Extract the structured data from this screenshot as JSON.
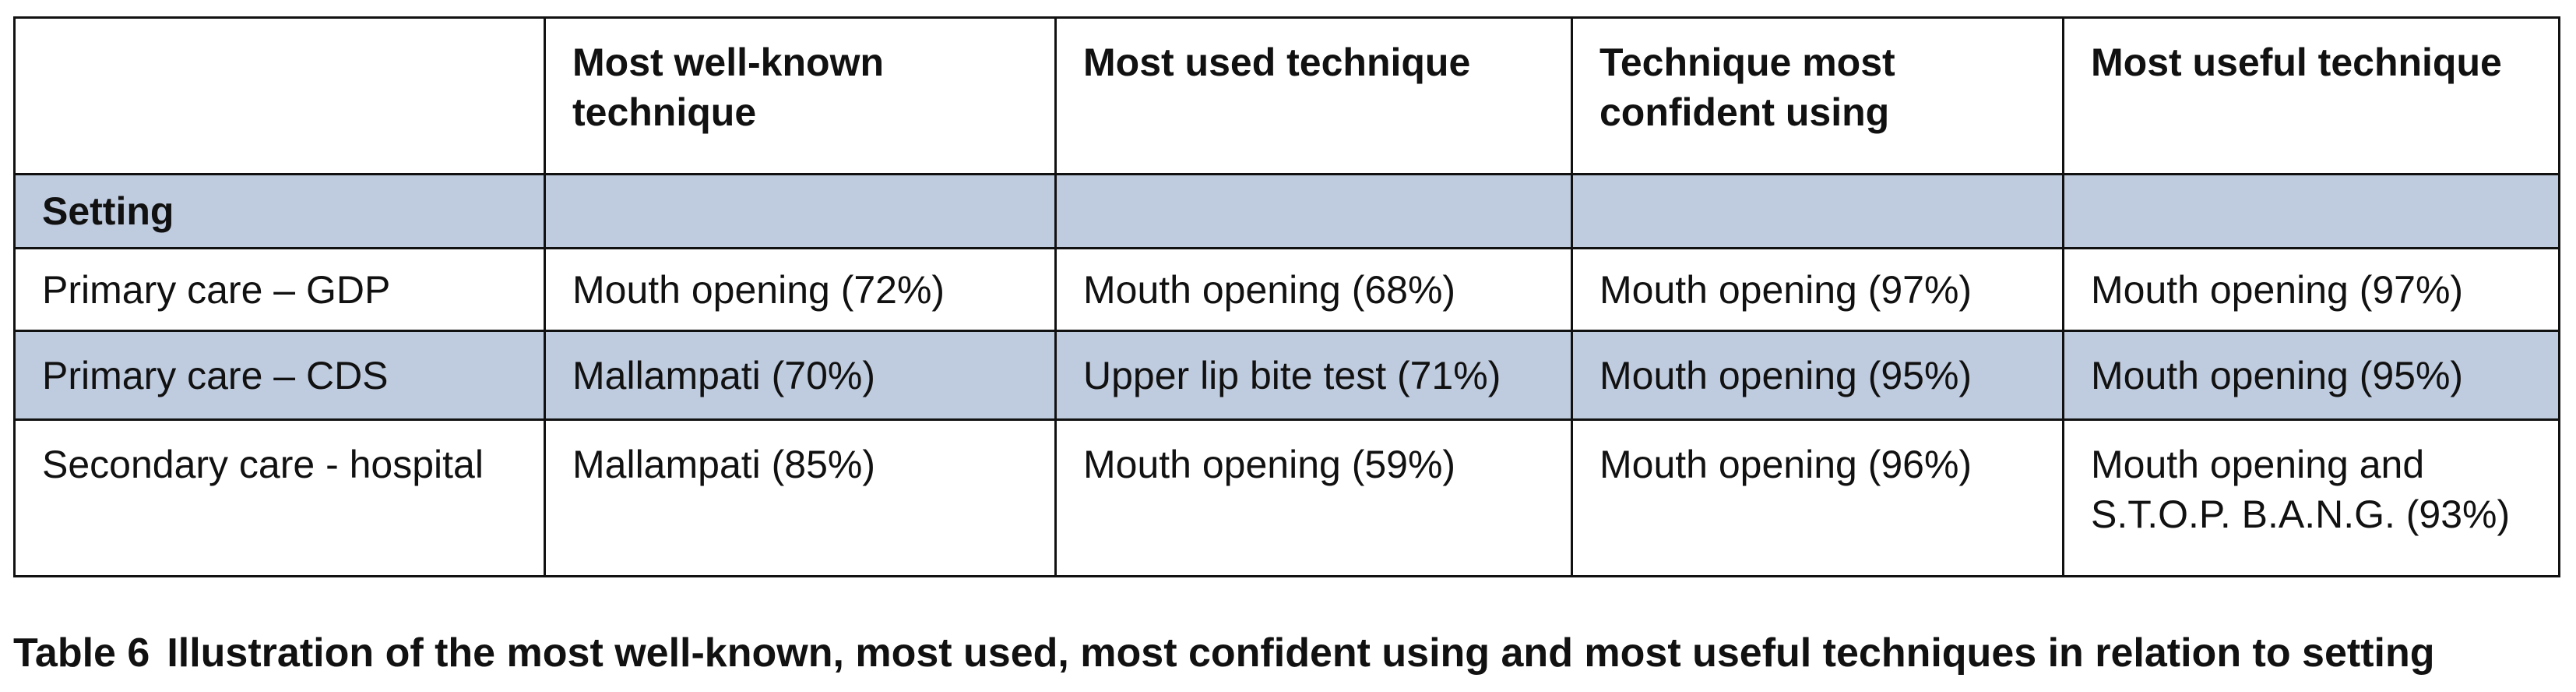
{
  "table": {
    "header": [
      "Most well-known technique",
      "Most used technique",
      "Technique most confident using",
      "Most useful technique"
    ],
    "section": "Setting",
    "rows": [
      [
        "Primary care – GDP",
        "Mouth opening (72%)",
        "Mouth opening (68%)",
        "Mouth opening (97%)",
        "Mouth opening (97%)"
      ],
      [
        "Primary care – CDS",
        "Mallampati (70%)",
        "Upper lip bite test (71%)",
        "Mouth opening (95%)",
        "Mouth opening (95%)"
      ],
      [
        "Secondary care - hospital",
        "Mallampati (85%)",
        "Mouth opening (59%)",
        "Mouth opening (96%)",
        "Mouth opening and S.T.O.P. B.A.N.G. (93%)"
      ]
    ]
  },
  "caption": {
    "label": "Table 6",
    "text": "Illustration of the most well-known, most used, most confident using and most useful techniques in relation to setting"
  }
}
